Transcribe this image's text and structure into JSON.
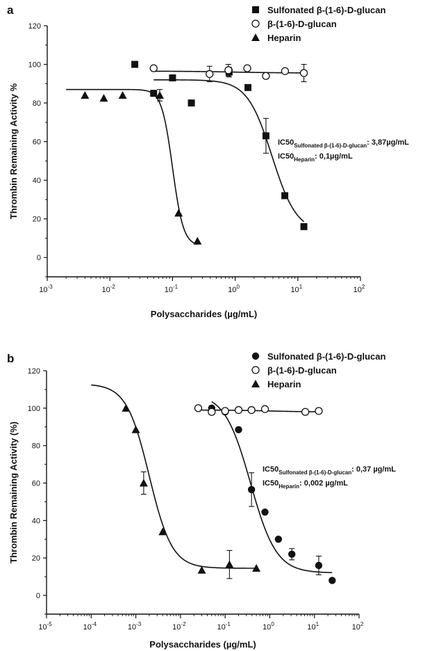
{
  "chart_data": [
    {
      "type": "scatter",
      "panel_label": "a",
      "xlabel": "Polysaccharides (µg/mL)",
      "ylabel": "Thrombin Remaining Activity %",
      "x_scale": "log",
      "xlim": [
        0.001,
        100
      ],
      "ylim": [
        -10,
        120
      ],
      "xticks": [
        0.001,
        0.01,
        0.1,
        1,
        10,
        100
      ],
      "xtick_labels": [
        {
          "base": "10",
          "exp": "-3"
        },
        {
          "base": "10",
          "exp": "-2"
        },
        {
          "base": "10",
          "exp": "-1"
        },
        {
          "base": "10",
          "exp": "0"
        },
        {
          "base": "10",
          "exp": "1"
        },
        {
          "base": "10",
          "exp": "2"
        }
      ],
      "yticks": [
        0,
        20,
        40,
        60,
        80,
        100,
        120
      ],
      "ytick_labels": [
        "0",
        "20",
        "40",
        "60",
        "80",
        "100",
        "120"
      ],
      "legend": {
        "position": "top-right"
      },
      "series": [
        {
          "name": "Sulfonated β-(1-6)-D-glucan",
          "marker": "filled-square",
          "points": [
            [
              0.025,
              100
            ],
            [
              0.05,
              85
            ],
            [
              0.1,
              93
            ],
            [
              0.2,
              80
            ],
            [
              0.8,
              96
            ],
            [
              1.6,
              88
            ],
            [
              3.1,
              63
            ],
            [
              6.2,
              32
            ],
            [
              12.5,
              16
            ]
          ],
          "errors": [
            [
              0.8,
              2.5
            ],
            [
              3.1,
              9
            ]
          ],
          "fit": {
            "top": 92,
            "bottom": 13,
            "ic50": 3.87,
            "hill": 2.2,
            "x_range": [
              0.05,
              12.5
            ]
          }
        },
        {
          "name": "β-(1-6)-D-glucan",
          "marker": "open-circle",
          "points": [
            [
              0.05,
              98
            ],
            [
              0.39,
              95
            ],
            [
              0.78,
              97
            ],
            [
              1.56,
              98
            ],
            [
              3.1,
              94
            ],
            [
              6.25,
              96.5
            ],
            [
              12.5,
              95.5
            ]
          ],
          "errors": [
            [
              0.39,
              4
            ],
            [
              0.78,
              3
            ],
            [
              12.5,
              4.5
            ]
          ],
          "fit": {
            "top": 96.5,
            "bottom": 95.5,
            "ic50": 1,
            "hill": 1,
            "x_range": [
              0.05,
              12.5
            ]
          }
        },
        {
          "name": "Heparin",
          "marker": "filled-triangle",
          "points": [
            [
              0.004,
              84
            ],
            [
              0.008,
              82.5
            ],
            [
              0.016,
              84
            ],
            [
              0.0625,
              84
            ],
            [
              0.125,
              23
            ],
            [
              0.25,
              8.5
            ]
          ],
          "errors": [
            [
              0.0625,
              3
            ]
          ],
          "fit": {
            "top": 87,
            "bottom": 6,
            "ic50": 0.1,
            "hill": 5,
            "x_range": [
              0.002,
              0.25
            ]
          }
        }
      ],
      "annotations": [
        {
          "main": "IC50",
          "sub": "Sulfonated β-(1-6)-D-glucan",
          "rest": ": 3,87µg/mL"
        },
        {
          "main": "IC50",
          "sub": "Heparin",
          "rest": ": 0,1µg/mL"
        }
      ]
    },
    {
      "type": "scatter",
      "panel_label": "b",
      "xlabel": "Polysaccharides (µg/mL)",
      "ylabel": "Thrombin Remaining Activity (%)",
      "x_scale": "log",
      "xlim": [
        1e-05,
        100
      ],
      "ylim": [
        -10,
        120
      ],
      "xticks": [
        1e-05,
        0.0001,
        0.001,
        0.01,
        0.1,
        1,
        10,
        100
      ],
      "xtick_labels": [
        {
          "base": "10",
          "exp": "-5"
        },
        {
          "base": "10",
          "exp": "-4"
        },
        {
          "base": "10",
          "exp": "-3"
        },
        {
          "base": "10",
          "exp": "-2"
        },
        {
          "base": "10",
          "exp": "-1"
        },
        {
          "base": "10",
          "exp": "0"
        },
        {
          "base": "10",
          "exp": "1"
        },
        {
          "base": "10",
          "exp": "2"
        }
      ],
      "yticks": [
        0,
        20,
        40,
        60,
        80,
        100,
        120
      ],
      "ytick_labels": [
        "0",
        "20",
        "40",
        "60",
        "80",
        "100",
        "120"
      ],
      "legend": {
        "position": "top-right"
      },
      "series": [
        {
          "name": "Sulfonated β-(1-6)-D-glucan",
          "marker": "filled-circle",
          "points": [
            [
              0.05,
              100
            ],
            [
              0.1,
              98
            ],
            [
              0.2,
              88.5
            ],
            [
              0.39,
              56.5
            ],
            [
              0.78,
              44.5
            ],
            [
              1.56,
              30
            ],
            [
              3.12,
              22
            ],
            [
              12.5,
              16
            ],
            [
              25,
              8
            ]
          ],
          "errors": [
            [
              0.39,
              9
            ],
            [
              3.12,
              3
            ],
            [
              12.5,
              5
            ]
          ],
          "fit": {
            "top": 108,
            "bottom": 12,
            "ic50": 0.37,
            "hill": 1.5,
            "x_range": [
              0.05,
              25
            ]
          }
        },
        {
          "name": "β-(1-6)-D-glucan",
          "marker": "open-circle",
          "points": [
            [
              0.025,
              100
            ],
            [
              0.05,
              98
            ],
            [
              0.1,
              98.5
            ],
            [
              0.2,
              99
            ],
            [
              0.39,
              99
            ],
            [
              0.78,
              99.5
            ],
            [
              6.25,
              98
            ],
            [
              12.5,
              98.5
            ]
          ],
          "errors": [],
          "fit": {
            "top": 99,
            "bottom": 98,
            "ic50": 1,
            "hill": 1,
            "x_range": [
              0.025,
              12.5
            ]
          }
        },
        {
          "name": "Heparin",
          "marker": "filled-triangle",
          "points": [
            [
              0.0006,
              100
            ],
            [
              0.001,
              88.5
            ],
            [
              0.0015,
              60
            ],
            [
              0.004,
              34
            ],
            [
              0.03,
              13.5
            ],
            [
              0.125,
              16.5
            ],
            [
              0.5,
              14.5
            ]
          ],
          "errors": [
            [
              0.0015,
              6
            ],
            [
              0.125,
              7.5
            ]
          ],
          "fit": {
            "top": 113,
            "bottom": 14.5,
            "ic50": 0.002,
            "hill": 1.7,
            "x_range": [
              0.0001,
              0.5
            ]
          }
        }
      ],
      "annotations": [
        {
          "main": "IC50",
          "sub": "Sulfonated β-(1-6)-D-glucan",
          "rest": ": 0,37 µg/mL"
        },
        {
          "main": "IC50",
          "sub": "Heparin",
          "rest": ": 0,002 µg/mL"
        }
      ]
    }
  ]
}
